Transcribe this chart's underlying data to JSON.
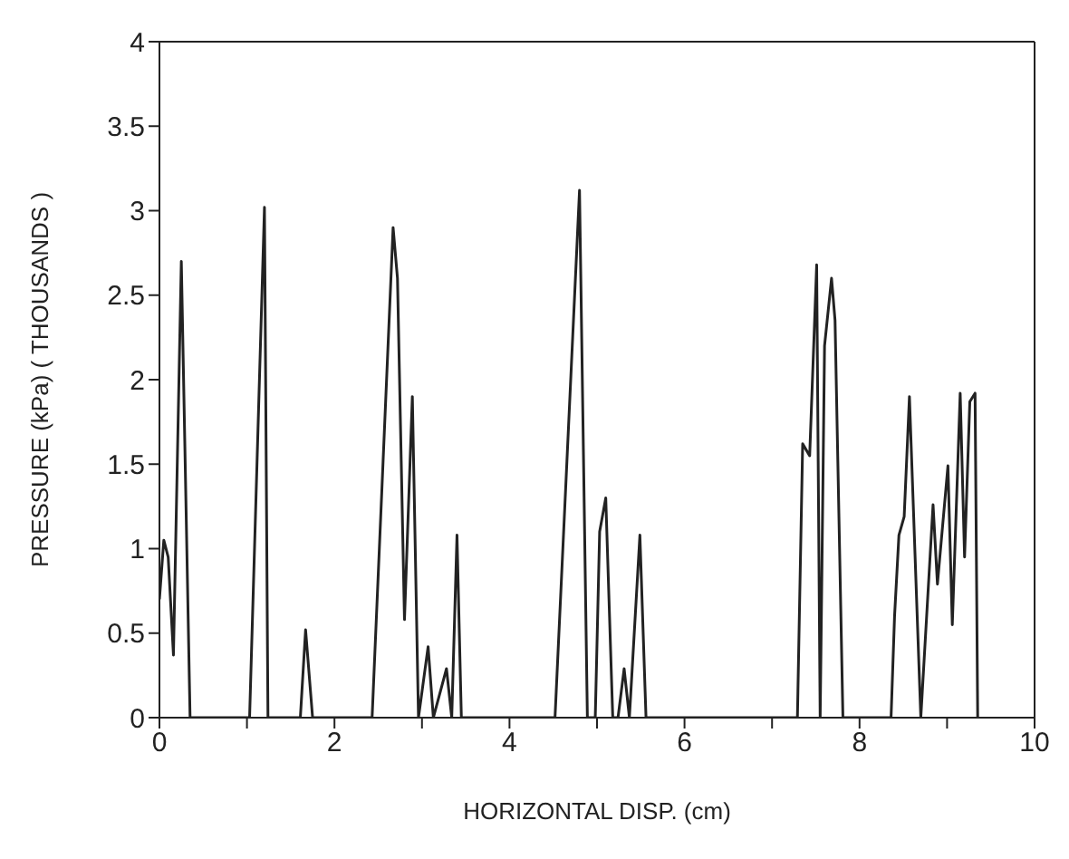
{
  "chart_data": {
    "type": "line",
    "xlabel": "HORIZONTAL DISP. (cm)",
    "ylabel": "PRESSURE (kPa) ( THOUSANDS )",
    "xlim": [
      0,
      10
    ],
    "ylim": [
      0,
      4
    ],
    "xticks": [
      0,
      {
        "value": 1,
        "label": null
      },
      2,
      {
        "value": 3,
        "label": null
      },
      4,
      {
        "value": 5,
        "label": null
      },
      6,
      {
        "value": 7,
        "label": null
      },
      8,
      {
        "value": 9,
        "label": null
      },
      10
    ],
    "yticks": [
      0,
      0.5,
      1,
      1.5,
      2,
      2.5,
      3,
      3.5,
      4
    ],
    "marker": "none",
    "line_style": "solid",
    "x": [
      0,
      0.05,
      0.1,
      0.16,
      0.25,
      0.35,
      1.03,
      1.2,
      1.24,
      1.61,
      1.67,
      1.75,
      2.43,
      2.67,
      2.72,
      2.8,
      2.89,
      2.96,
      3.07,
      3.13,
      3.28,
      3.34,
      3.4,
      3.45,
      4.52,
      4.8,
      4.89,
      4.98,
      5.03,
      5.1,
      5.18,
      5.24,
      5.31,
      5.37,
      5.49,
      5.56,
      7.29,
      7.35,
      7.43,
      7.51,
      7.55,
      7.6,
      7.68,
      7.72,
      7.81,
      8.36,
      8.4,
      8.45,
      8.51,
      8.57,
      8.7,
      8.84,
      8.89,
      9.01,
      9.06,
      9.15,
      9.2,
      9.26,
      9.32,
      9.35
    ],
    "series": [
      {
        "color": "#222222",
        "values": [
          0.7,
          1.05,
          0.95,
          0.37,
          2.7,
          0,
          0,
          3.02,
          0,
          0,
          0.52,
          0,
          0,
          2.9,
          2.6,
          0.58,
          1.9,
          0,
          0.42,
          0,
          0.29,
          0,
          1.08,
          0,
          0,
          3.12,
          0,
          0,
          1.1,
          1.3,
          0,
          0,
          0.29,
          0,
          1.08,
          0,
          0,
          1.62,
          1.55,
          2.68,
          0,
          2.2,
          2.6,
          2.35,
          0,
          0,
          0.6,
          1.08,
          1.19,
          1.9,
          0,
          1.26,
          0.79,
          1.49,
          0.55,
          1.92,
          0.95,
          1.87,
          1.92,
          0
        ]
      }
    ]
  }
}
